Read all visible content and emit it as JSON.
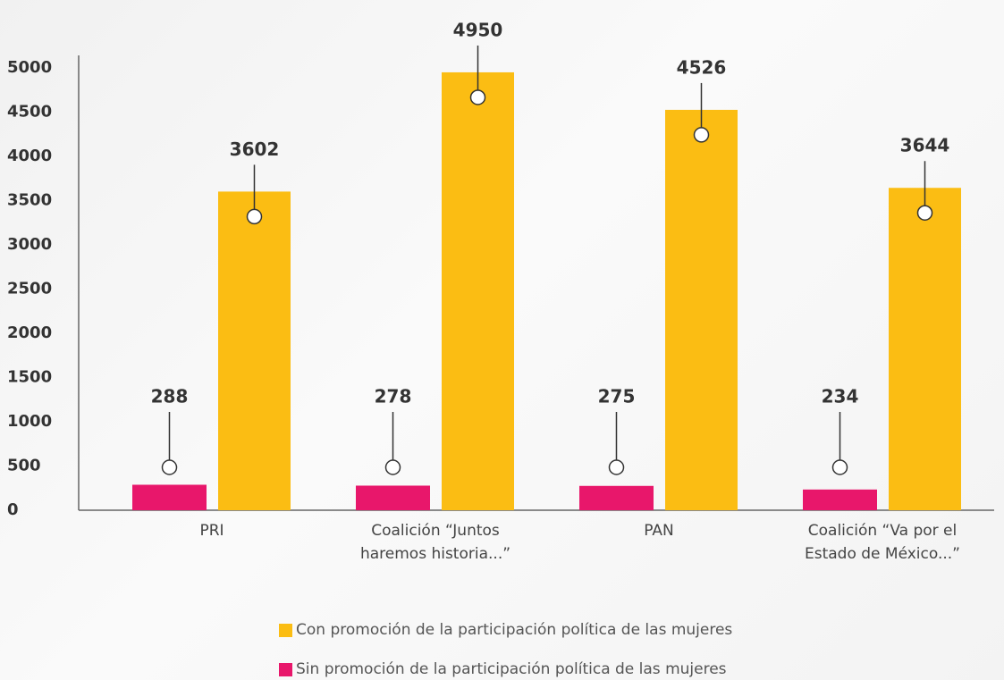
{
  "chart_data": {
    "type": "bar",
    "categories": [
      "PRI",
      "Coalición “Juntos haremos historia...”",
      "PAN",
      "Coalición “Va por el Estado de México...”"
    ],
    "series": [
      {
        "name": "Sin promoción de la participación política de las mujeres",
        "color": "#e8176b",
        "values": [
          288,
          278,
          275,
          234
        ]
      },
      {
        "name": "Con promoción de la participación política de las mujeres",
        "color": "#fbbd13",
        "values": [
          3602,
          4950,
          4526,
          3644
        ]
      }
    ],
    "ylim": [
      0,
      5000
    ],
    "yticks": [
      0,
      500,
      1000,
      1500,
      2000,
      2500,
      3000,
      3500,
      4000,
      4500,
      5000
    ],
    "grid": false,
    "legend": "bottom"
  }
}
